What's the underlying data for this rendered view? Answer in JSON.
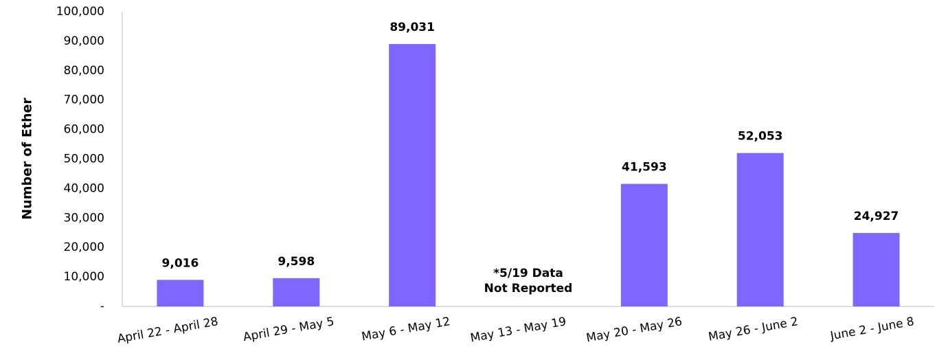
{
  "chart_data": {
    "type": "bar",
    "y_label": "Number of Ether",
    "categories": [
      "April 22 - April 28",
      "April 29 - May 5",
      "May 6 - May 12",
      "May 13 - May 19",
      "May 20 - May 26",
      "May 26 - June 2",
      "June 2 - June 8"
    ],
    "values": [
      9016,
      9598,
      89031,
      null,
      41593,
      52053,
      24927
    ],
    "value_labels": [
      "9,016",
      "9,598",
      "89,031",
      null,
      "41,593",
      "52,053",
      "24,927"
    ],
    "annotation": [
      "*5/19 Data",
      "Not Reported"
    ],
    "color": "#8066ff",
    "ylim": [
      0,
      100000
    ],
    "yticks": [
      {
        "value": 0,
        "label": "-"
      },
      {
        "value": 10000,
        "label": "10,000"
      },
      {
        "value": 20000,
        "label": "20,000"
      },
      {
        "value": 30000,
        "label": "30,000"
      },
      {
        "value": 40000,
        "label": "40,000"
      },
      {
        "value": 50000,
        "label": "50,000"
      },
      {
        "value": 60000,
        "label": "60,000"
      },
      {
        "value": 70000,
        "label": "70,000"
      },
      {
        "value": 80000,
        "label": "80,000"
      },
      {
        "value": 90000,
        "label": "90,000"
      },
      {
        "value": 100000,
        "label": "100,000"
      }
    ],
    "grid": false
  }
}
